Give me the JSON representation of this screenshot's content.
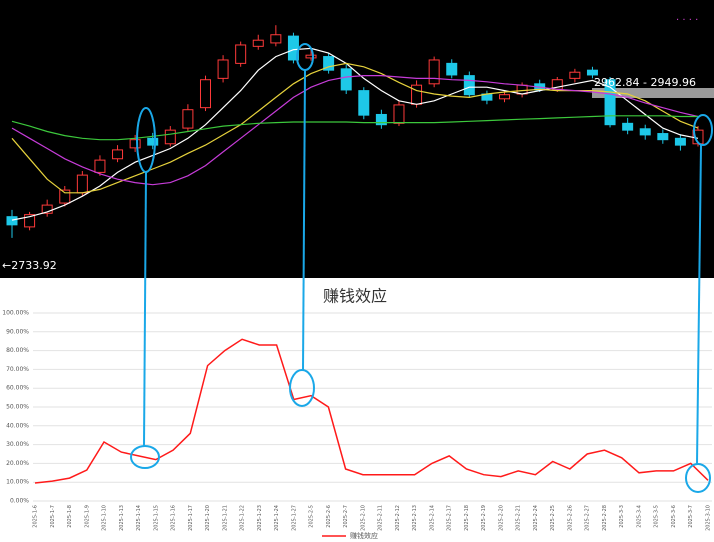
{
  "chart_data": [
    {
      "type": "candlestick",
      "ylim": [
        2675,
        3083
      ],
      "open": [
        2765,
        2750,
        2770,
        2785,
        2800,
        2830,
        2850,
        2866,
        2880,
        2872,
        2895,
        2925,
        2968,
        2990,
        3015,
        3020,
        3030,
        2998,
        3000,
        2982,
        2950,
        2915,
        2902,
        2930,
        2960,
        2990,
        2972,
        2945,
        2938,
        2945,
        2960,
        2952,
        2968,
        2980,
        2966,
        2902,
        2894,
        2887,
        2880,
        2872
      ],
      "high": [
        2775,
        2772,
        2790,
        2810,
        2832,
        2855,
        2870,
        2885,
        2888,
        2898,
        2930,
        2972,
        3002,
        3022,
        3032,
        3046,
        3035,
        3010,
        3005,
        2988,
        2955,
        2922,
        2935,
        2965,
        3000,
        2996,
        2978,
        2950,
        2950,
        2962,
        2966,
        2970,
        2982,
        2985,
        2970,
        2910,
        2900,
        2893,
        2886,
        2898
      ],
      "low": [
        2733.92,
        2745,
        2765,
        2780,
        2796,
        2825,
        2845,
        2860,
        2864,
        2868,
        2890,
        2920,
        2962,
        2985,
        3010,
        3015,
        2990,
        2994,
        2975,
        2945,
        2908,
        2894,
        2898,
        2925,
        2955,
        2968,
        2940,
        2930,
        2933,
        2940,
        2948,
        2948,
        2962,
        2968,
        2896,
        2886,
        2878,
        2872,
        2862,
        2868
      ],
      "close": [
        2753,
        2768,
        2782,
        2804,
        2826,
        2848,
        2863,
        2878,
        2870,
        2892,
        2922,
        2966,
        2995,
        3017,
        3024,
        3032,
        2995,
        3002,
        2980,
        2951,
        2914,
        2900,
        2929,
        2958,
        2995,
        2973,
        2944,
        2936,
        2944,
        2958,
        2951,
        2966,
        2977,
        2973,
        2900,
        2892,
        2885,
        2878,
        2870,
        2892
      ],
      "up_color": "#ff3a3a",
      "down_color": "#1ec8e8",
      "series": [
        {
          "color": "#ffffff",
          "values": [
            2760,
            2765,
            2772,
            2782,
            2795,
            2810,
            2830,
            2845,
            2855,
            2865,
            2880,
            2900,
            2925,
            2950,
            2980,
            3000,
            3010,
            3012,
            3005,
            2990,
            2968,
            2950,
            2935,
            2930,
            2935,
            2945,
            2955,
            2955,
            2950,
            2945,
            2950,
            2955,
            2960,
            2965,
            2955,
            2935,
            2915,
            2895,
            2885,
            2880
          ]
        },
        {
          "color": "#e6d23c",
          "values": [
            2880,
            2850,
            2820,
            2800,
            2800,
            2805,
            2815,
            2825,
            2835,
            2845,
            2858,
            2870,
            2885,
            2900,
            2920,
            2940,
            2960,
            2975,
            2985,
            2990,
            2985,
            2975,
            2962,
            2950,
            2945,
            2942,
            2940,
            2945,
            2948,
            2950,
            2952,
            2950,
            2950,
            2950,
            2948,
            2945,
            2935,
            2920,
            2905,
            2895
          ]
        },
        {
          "color": "#c63cd8",
          "values": [
            2895,
            2880,
            2865,
            2850,
            2838,
            2828,
            2820,
            2815,
            2812,
            2815,
            2825,
            2840,
            2860,
            2880,
            2900,
            2920,
            2940,
            2955,
            2965,
            2970,
            2972,
            2972,
            2970,
            2968,
            2968,
            2966,
            2965,
            2963,
            2960,
            2958,
            2955,
            2952,
            2950,
            2948,
            2945,
            2940,
            2932,
            2925,
            2918,
            2912
          ]
        },
        {
          "color": "#3cc83c",
          "values": [
            2905,
            2898,
            2890,
            2884,
            2880,
            2878,
            2878,
            2880,
            2883,
            2886,
            2890,
            2894,
            2898,
            2900,
            2902,
            2903,
            2904,
            2904,
            2904,
            2904,
            2903,
            2903,
            2903,
            2903,
            2903,
            2904,
            2905,
            2906,
            2907,
            2908,
            2909,
            2910,
            2911,
            2912,
            2913,
            2913,
            2913,
            2913,
            2912,
            2912
          ]
        }
      ],
      "annotations": [
        "2962.84 - 2949.96",
        "←2733.92"
      ]
    },
    {
      "type": "line",
      "title": "赚钱效应",
      "categories": [
        "2025-1-6",
        "2025-1-7",
        "2025-1-8",
        "2025-1-9",
        "2025-1-10",
        "2025-1-13",
        "2025-1-14",
        "2025-1-15",
        "2025-1-16",
        "2025-1-17",
        "2025-1-20",
        "2025-1-21",
        "2025-1-22",
        "2025-1-23",
        "2025-1-24",
        "2025-1-27",
        "2025-2-5",
        "2025-2-6",
        "2025-2-7",
        "2025-2-10",
        "2025-2-11",
        "2025-2-12",
        "2025-2-13",
        "2025-2-14",
        "2025-2-17",
        "2025-2-18",
        "2025-2-19",
        "2025-2-20",
        "2025-2-21",
        "2025-2-24",
        "2025-2-25",
        "2025-2-26",
        "2025-2-27",
        "2025-2-28",
        "2025-3-3",
        "2025-3-4",
        "2025-3-5",
        "2025-3-6",
        "2025-3-7",
        "2025-3-10"
      ],
      "series": [
        {
          "name": "赚钱效应",
          "color": "#ff1a1a",
          "values": [
            9.6,
            10.6,
            12.2,
            16.5,
            31.4,
            26,
            24,
            22,
            27,
            36,
            72,
            80,
            86,
            83,
            83,
            54,
            56,
            50,
            17,
            14,
            14,
            14,
            14,
            20,
            24,
            17,
            14,
            13,
            16,
            14,
            21,
            17,
            25,
            27,
            23,
            15,
            16,
            16,
            20,
            11
          ]
        }
      ],
      "ylim": [
        0,
        100
      ],
      "yticks": [
        {
          "value": 0,
          "label": "0.00%"
        },
        {
          "value": 10,
          "label": "10.00%"
        },
        {
          "value": 20,
          "label": "20.00%"
        },
        {
          "value": 30,
          "label": "30.00%"
        },
        {
          "value": 40,
          "label": "40.00%"
        },
        {
          "value": 50,
          "label": "50.00%"
        },
        {
          "value": 60,
          "label": "60.00%"
        },
        {
          "value": 70,
          "label": "70.00%"
        },
        {
          "value": 80,
          "label": "80.00%"
        },
        {
          "value": 90,
          "label": "90.00%"
        },
        {
          "value": 100,
          "label": "100.00%"
        }
      ],
      "grid": true
    }
  ]
}
